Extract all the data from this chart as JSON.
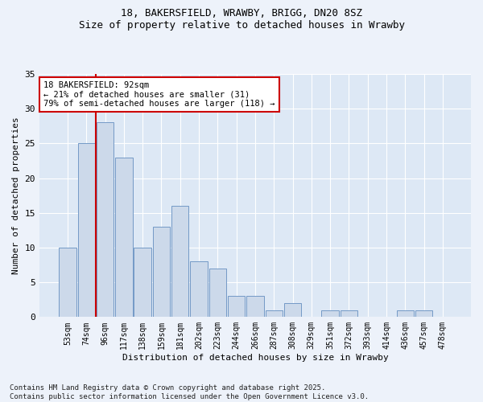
{
  "title_line1": "18, BAKERSFIELD, WRAWBY, BRIGG, DN20 8SZ",
  "title_line2": "Size of property relative to detached houses in Wrawby",
  "xlabel": "Distribution of detached houses by size in Wrawby",
  "ylabel": "Number of detached properties",
  "footer": "Contains HM Land Registry data © Crown copyright and database right 2025.\nContains public sector information licensed under the Open Government Licence v3.0.",
  "bar_color": "#ccd9ea",
  "bar_edge_color": "#7399c6",
  "background_color": "#dde8f5",
  "fig_background": "#edf2fa",
  "annotation_box_color": "#cc0000",
  "vline_color": "#cc0000",
  "categories": [
    "53sqm",
    "74sqm",
    "96sqm",
    "117sqm",
    "138sqm",
    "159sqm",
    "181sqm",
    "202sqm",
    "223sqm",
    "244sqm",
    "266sqm",
    "287sqm",
    "308sqm",
    "329sqm",
    "351sqm",
    "372sqm",
    "393sqm",
    "414sqm",
    "436sqm",
    "457sqm",
    "478sqm"
  ],
  "values": [
    10,
    25,
    28,
    23,
    10,
    13,
    16,
    8,
    7,
    3,
    3,
    1,
    2,
    0,
    1,
    1,
    0,
    0,
    1,
    1,
    0
  ],
  "ylim": [
    0,
    35
  ],
  "yticks": [
    0,
    5,
    10,
    15,
    20,
    25,
    30,
    35
  ],
  "vline_position": 1.5,
  "annotation_text": "18 BAKERSFIELD: 92sqm\n← 21% of detached houses are smaller (31)\n79% of semi-detached houses are larger (118) →",
  "footer_fontsize": 6.5,
  "title_fontsize": 9,
  "label_fontsize": 8,
  "tick_fontsize": 7,
  "annot_fontsize": 7.5
}
